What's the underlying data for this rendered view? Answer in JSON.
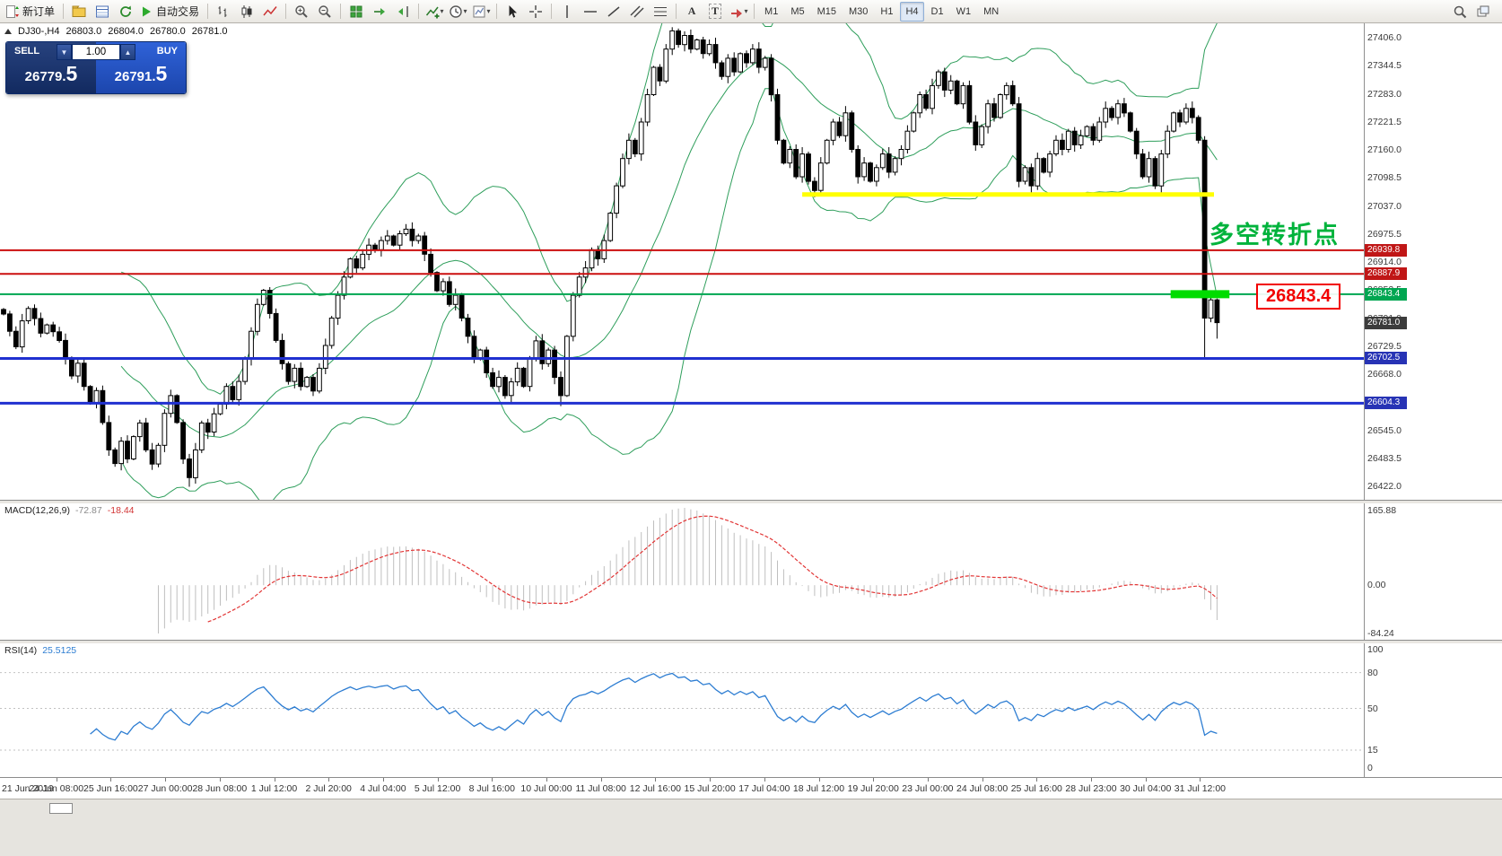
{
  "toolbar": {
    "new_order": "新订单",
    "autotrade": "自动交易",
    "text_tool": "A",
    "label_tool": "T",
    "timeframes": [
      "M1",
      "M5",
      "M15",
      "M30",
      "H1",
      "H4",
      "D1",
      "W1",
      "MN"
    ],
    "active_timeframe": "H4"
  },
  "header": {
    "symbol": "DJ30-,H4",
    "open": "26803.0",
    "high": "26804.0",
    "low": "26780.0",
    "close": "26781.0"
  },
  "trade_panel": {
    "sell_label": "SELL",
    "buy_label": "BUY",
    "lot": "1.00",
    "sell_price": "26779.",
    "sell_pip": "5",
    "buy_price": "26791.",
    "buy_pip": "5"
  },
  "annotations": {
    "turning_point": {
      "text": "多空转折点",
      "color": "#00b33c"
    },
    "price_box": {
      "text": "26843.4",
      "color": "#f20000"
    }
  },
  "macd_panel": {
    "label": "MACD(12,26,9)",
    "value_main": "-72.87",
    "value_signal": "-18.44",
    "scale_top": "165.88",
    "scale_zero": "0.00",
    "scale_bottom": "-84.24"
  },
  "rsi_panel": {
    "label": "RSI(14)",
    "value": "25.5125",
    "scale": [
      100,
      80,
      50,
      15,
      0
    ],
    "levels": [
      80,
      50,
      15
    ]
  },
  "chart_data": {
    "type": "candlestick",
    "symbol": "DJ30-",
    "timeframe": "H4",
    "first_open": 26810,
    "closes": [
      26800,
      26762,
      26728,
      26785,
      26812,
      26790,
      26758,
      26776,
      26761,
      26742,
      26702,
      26664,
      26692,
      26641,
      26604,
      26632,
      26562,
      26502,
      26472,
      26521,
      26482,
      26531,
      26561,
      26502,
      26471,
      26512,
      26582,
      26621,
      26562,
      26482,
      26441,
      26502,
      26561,
      26541,
      26581,
      26602,
      26641,
      26612,
      26652,
      26702,
      26762,
      26821,
      26852,
      26801,
      26742,
      26691,
      26652,
      26681,
      26641,
      26661,
      26631,
      26681,
      26731,
      26791,
      26841,
      26881,
      26921,
      26901,
      26931,
      26951,
      26941,
      26961,
      26971,
      26951,
      26976,
      26986,
      26961,
      26971,
      26931,
      26891,
      26851,
      26871,
      26821,
      26841,
      26791,
      26751,
      26701,
      26721,
      26671,
      26641,
      26661,
      26621,
      26651,
      26681,
      26641,
      26701,
      26741,
      26691,
      26721,
      26661,
      26621,
      26751,
      26841,
      26881,
      26901,
      26941,
      26921,
      26961,
      27021,
      27081,
      27141,
      27181,
      27151,
      27221,
      27281,
      27341,
      27311,
      27381,
      27421,
      27391,
      27411,
      27381,
      27401,
      27371,
      27391,
      27351,
      27321,
      27361,
      27331,
      27371,
      27351,
      27381,
      27341,
      27361,
      27281,
      27181,
      27131,
      27161,
      27101,
      27151,
      27091,
      27071,
      27131,
      27181,
      27221,
      27191,
      27241,
      27161,
      27101,
      27131,
      27091,
      27121,
      27151,
      27111,
      27141,
      27161,
      27201,
      27241,
      27281,
      27251,
      27301,
      27331,
      27291,
      27311,
      27261,
      27301,
      27221,
      27171,
      27211,
      27261,
      27231,
      27281,
      27301,
      27261,
      27091,
      27121,
      27081,
      27141,
      27111,
      27151,
      27181,
      27161,
      27201,
      27171,
      27191,
      27211,
      27181,
      27221,
      27251,
      27231,
      27261,
      27241,
      27201,
      27151,
      27101,
      27141,
      27081,
      27151,
      27201,
      27241,
      27221,
      27251,
      27231,
      27181,
      26791,
      26831,
      26781
    ],
    "wick_overrides": {
      "30": {
        "low": 26421
      },
      "90": {
        "low": 26598
      },
      "108": {
        "high": 27429
      },
      "194": {
        "low": 26700
      },
      "196": {
        "low": 26746
      }
    },
    "indicators": {
      "bollinger_period": 20,
      "bollinger_dev": 2,
      "macd": [
        12,
        26,
        9
      ],
      "rsi_period": 14
    },
    "price_range": {
      "top": 27437.5,
      "bottom": 26392.5
    },
    "price_axis": {
      "top_value": 27406.0,
      "step": 61.5,
      "count": 17
    },
    "hlines": [
      {
        "price": 26939.8,
        "color": "#cc0f0f",
        "width": 2,
        "badge": "26939.8",
        "badge_color": "#c01616"
      },
      {
        "price": 26887.9,
        "color": "#cc0f0f",
        "width": 2,
        "badge": "26887.9",
        "badge_color": "#c01616"
      },
      {
        "price": 26843.4,
        "color": "#00a651",
        "width": 2,
        "badge": "26843.4",
        "badge_color": "#00a651"
      },
      {
        "price": 26702.5,
        "color": "#2030d0",
        "width": 3,
        "badge": "26702.5",
        "badge_color": "#2733b5"
      },
      {
        "price": 26604.3,
        "color": "#2030d0",
        "width": 3,
        "badge": "26604.3",
        "badge_color": "#2733b5"
      }
    ],
    "current_price_badge": {
      "value": "26781.0",
      "color": "#3c3c3c"
    },
    "yellow_segment": {
      "price": 27062,
      "from_bar": 129,
      "to_bar": 195.5,
      "color": "#ffff00",
      "width": 5
    },
    "green_segment": {
      "price": 26843.4,
      "from_bar": 188.5,
      "to_bar": 198,
      "color": "#00dc00",
      "width": 9
    },
    "time_labels": [
      "21 Jun 2019",
      "24 Jun 08:00",
      "25 Jun 16:00",
      "27 Jun 00:00",
      "28 Jun 08:00",
      "1 Jul 12:00",
      "2 Jul 20:00",
      "4 Jul 04:00",
      "5 Jul 12:00",
      "8 Jul 16:00",
      "10 Jul 00:00",
      "11 Jul 08:00",
      "12 Jul 16:00",
      "15 Jul 20:00",
      "17 Jul 04:00",
      "18 Jul 12:00",
      "19 Jul 20:00",
      "23 Jul 00:00",
      "24 Jul 08:00",
      "25 Jul 16:00",
      "28 Jul 23:00",
      "30 Jul 04:00",
      "31 Jul 12:00"
    ]
  }
}
